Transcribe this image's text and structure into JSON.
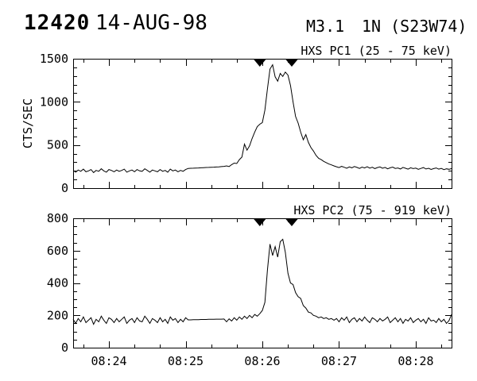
{
  "colors": {
    "background": "#ffffff",
    "foreground": "#000000"
  },
  "header": {
    "event_number": "12420",
    "date": "14-AUG-98",
    "goes_class": "M3.1",
    "importance_location": "1N (S23W74)"
  },
  "chart_data": [
    {
      "type": "line",
      "id": "pc1",
      "title": "HXS PC1 (25 - 75 keV)",
      "ylabel": "CTS/SEC",
      "ylim": [
        0,
        1500
      ],
      "ytick_values": [
        0,
        500,
        1000,
        1500
      ],
      "ytick_labels": [
        "0",
        "500",
        "1000",
        "1500"
      ],
      "ytick_minor_step": 100,
      "x_start_time": "08:23:32",
      "x_seconds_range": [
        0,
        296
      ],
      "xtick_labels": [
        "08:24",
        "08:25",
        "08:26",
        "08:27",
        "08:28"
      ],
      "xtick_seconds": [
        28,
        88,
        148,
        208,
        268
      ],
      "xtick_minor_step_seconds": 20,
      "marker_seconds": [
        146,
        171
      ],
      "sample_step_seconds": 2,
      "grid": false,
      "legend": "none",
      "values": [
        205,
        185,
        210,
        195,
        220,
        190,
        200,
        215,
        180,
        205,
        195,
        225,
        200,
        185,
        215,
        205,
        190,
        210,
        195,
        205,
        220,
        185,
        200,
        210,
        190,
        215,
        200,
        195,
        225,
        205,
        185,
        210,
        200,
        190,
        215,
        195,
        205,
        185,
        220,
        200,
        210,
        190,
        205,
        195,
        215,
        228,
        230,
        231,
        233,
        234,
        236,
        237,
        239,
        240,
        242,
        243,
        245,
        247,
        249,
        252,
        258,
        250,
        272,
        290,
        285,
        330,
        360,
        510,
        440,
        490,
        575,
        650,
        713,
        741,
        760,
        905,
        1150,
        1380,
        1430,
        1290,
        1240,
        1330,
        1295,
        1345,
        1310,
        1190,
        1000,
        830,
        755,
        650,
        560,
        620,
        530,
        470,
        430,
        380,
        345,
        330,
        310,
        295,
        280,
        270,
        258,
        248,
        238,
        252,
        242,
        230,
        246,
        236,
        250,
        240,
        228,
        244,
        234,
        248,
        232,
        242,
        226,
        238,
        246,
        230,
        240,
        224,
        236,
        244,
        228,
        234,
        222,
        240,
        230,
        220,
        236,
        226,
        232,
        218,
        228,
        238,
        222,
        230,
        216,
        226,
        234,
        220,
        228,
        214,
        224,
        218,
        226
      ]
    },
    {
      "type": "line",
      "id": "pc2",
      "title": "HXS PC2 (75 - 919 keV)",
      "ylabel": "",
      "ylim": [
        0,
        800
      ],
      "ytick_values": [
        0,
        200,
        400,
        600,
        800
      ],
      "ytick_labels": [
        "0",
        "200",
        "400",
        "600",
        "800"
      ],
      "ytick_minor_step": 50,
      "x_start_time": "08:23:32",
      "x_seconds_range": [
        0,
        296
      ],
      "xtick_labels": [
        "08:24",
        "08:25",
        "08:26",
        "08:27",
        "08:28"
      ],
      "xtick_seconds": [
        28,
        88,
        148,
        208,
        268
      ],
      "xtick_minor_step_seconds": 20,
      "marker_seconds": [
        146,
        171
      ],
      "sample_step_seconds": 2,
      "grid": false,
      "legend": "none",
      "values": [
        175,
        150,
        180,
        160,
        190,
        155,
        170,
        185,
        145,
        175,
        160,
        195,
        170,
        150,
        185,
        175,
        155,
        180,
        160,
        175,
        190,
        150,
        170,
        180,
        155,
        185,
        165,
        160,
        195,
        175,
        150,
        180,
        170,
        155,
        185,
        160,
        175,
        150,
        190,
        170,
        180,
        155,
        175,
        160,
        185,
        172,
        172,
        173,
        173,
        173,
        174,
        174,
        174,
        175,
        175,
        175,
        176,
        176,
        176,
        177,
        160,
        178,
        165,
        185,
        170,
        190,
        175,
        195,
        180,
        200,
        185,
        205,
        195,
        210,
        230,
        280,
        480,
        640,
        570,
        625,
        560,
        655,
        670,
        590,
        460,
        400,
        390,
        340,
        315,
        305,
        260,
        245,
        220,
        215,
        200,
        195,
        185,
        190,
        180,
        185,
        175,
        180,
        170,
        180,
        160,
        185,
        170,
        190,
        155,
        175,
        185,
        160,
        180,
        165,
        190,
        170,
        155,
        185,
        175,
        160,
        180,
        165,
        175,
        190,
        155,
        170,
        185,
        160,
        180,
        150,
        175,
        165,
        185,
        155,
        170,
        180,
        160,
        175,
        150,
        185,
        165,
        170,
        155,
        180,
        160,
        175,
        150,
        168,
        205
      ]
    }
  ]
}
